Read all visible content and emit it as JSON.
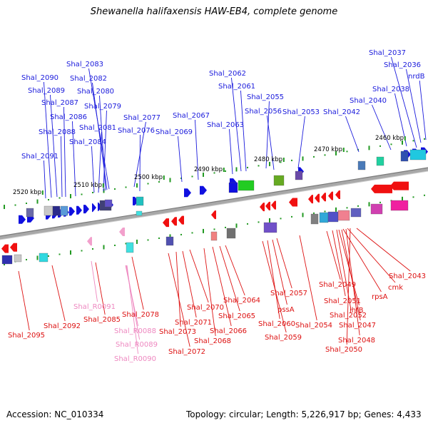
{
  "title": "Shewanella halifaxensis HAW-EB4, complete genome",
  "footer": {
    "accession": "Accession: NC_010334",
    "summary": "Topology: circular; Length: 5,226,917 bp; Genes: 4,433"
  },
  "colors": {
    "forward_label": "#1a1adc",
    "reverse_label": "#dd1111",
    "rna_label": "#ee88c0",
    "forward_gene": "#1010e0",
    "reverse_gene": "#f01010",
    "rna_gene": "#f2a0cc",
    "ruler_tick": "#229922",
    "backbone": "#9a9a9a"
  },
  "ruler": {
    "scale_labels": [
      "2460 kbp",
      "2470 kbp",
      "2480 kbp",
      "2490 kbp",
      "2500 kbp",
      "2510 kbp",
      "2520 kbp"
    ]
  },
  "genes": {
    "forward": [
      "Shal_2037",
      "Shal_2036",
      "nrdB",
      "Shal_2038",
      "Shal_2040",
      "Shal_2042",
      "Shal_2053",
      "Shal_2055",
      "Shal_2056",
      "Shal_2062",
      "Shal_2061",
      "Shal_2063",
      "Shal_2067",
      "Shal_2069",
      "Shal_2077",
      "Shal_2076",
      "Shal_2083",
      "Shal_2082",
      "Shal_2080",
      "Shal_2079",
      "Shal_2081",
      "Shal_2084",
      "Shal_2086",
      "Shal_2087",
      "Shal_2088",
      "Shal_2089",
      "Shal_2090",
      "Shal_2091"
    ],
    "reverse": [
      "Shal_2043",
      "cmk",
      "rpsA",
      "ihfB",
      "Shal_2049",
      "Shal_2051",
      "Shal_2052",
      "Shal_2047",
      "Shal_2048",
      "Shal_2050",
      "Shal_2054",
      "Shal_2057",
      "pssA",
      "Shal_2060",
      "Shal_2059",
      "Shal_2064",
      "Shal_2065",
      "Shal_2066",
      "Shal_2068",
      "Shal_2070",
      "Shal_2071",
      "Shal_2073",
      "Shal_2072",
      "Shal_2078",
      "Shal_2085",
      "Shal_2092",
      "Shal_2095"
    ],
    "rna": [
      "Shal_R0091",
      "Shal_R0088",
      "Shal_R0089",
      "Shal_R0090"
    ]
  }
}
